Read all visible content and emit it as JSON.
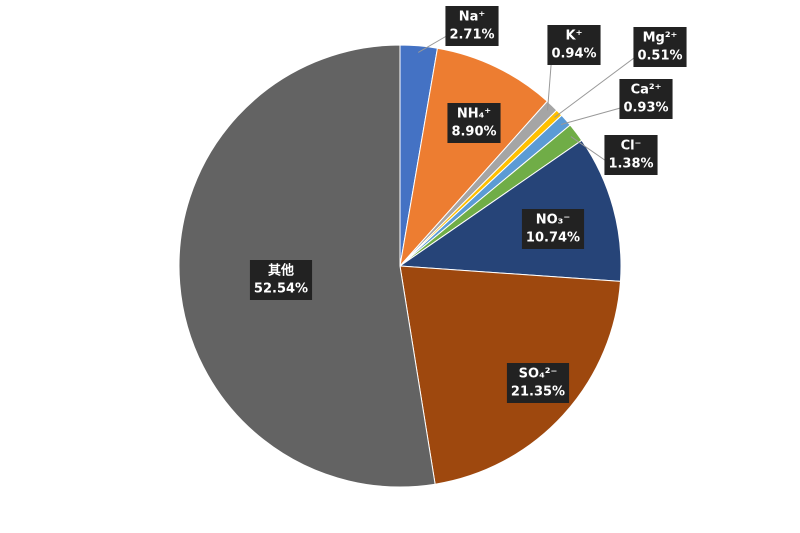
{
  "chart_data": {
    "type": "pie",
    "categories": [
      "Na⁺",
      "NH₄⁺",
      "K⁺",
      "Mg²⁺",
      "Ca²⁺",
      "Cl⁻",
      "NO₃⁻",
      "SO₄²⁻",
      "其他"
    ],
    "values": [
      2.71,
      8.9,
      0.94,
      0.51,
      0.93,
      1.38,
      10.74,
      21.35,
      52.54
    ],
    "value_labels": [
      "2.71%",
      "8.90%",
      "0.94%",
      "0.51%",
      "0.93%",
      "1.38%",
      "10.74%",
      "21.35%",
      "52.54%"
    ],
    "colors": [
      "#4472c4",
      "#ed7d31",
      "#a5a5a5",
      "#ffc000",
      "#5b9bd5",
      "#70ad47",
      "#264478",
      "#9e480e",
      "#636363"
    ]
  }
}
